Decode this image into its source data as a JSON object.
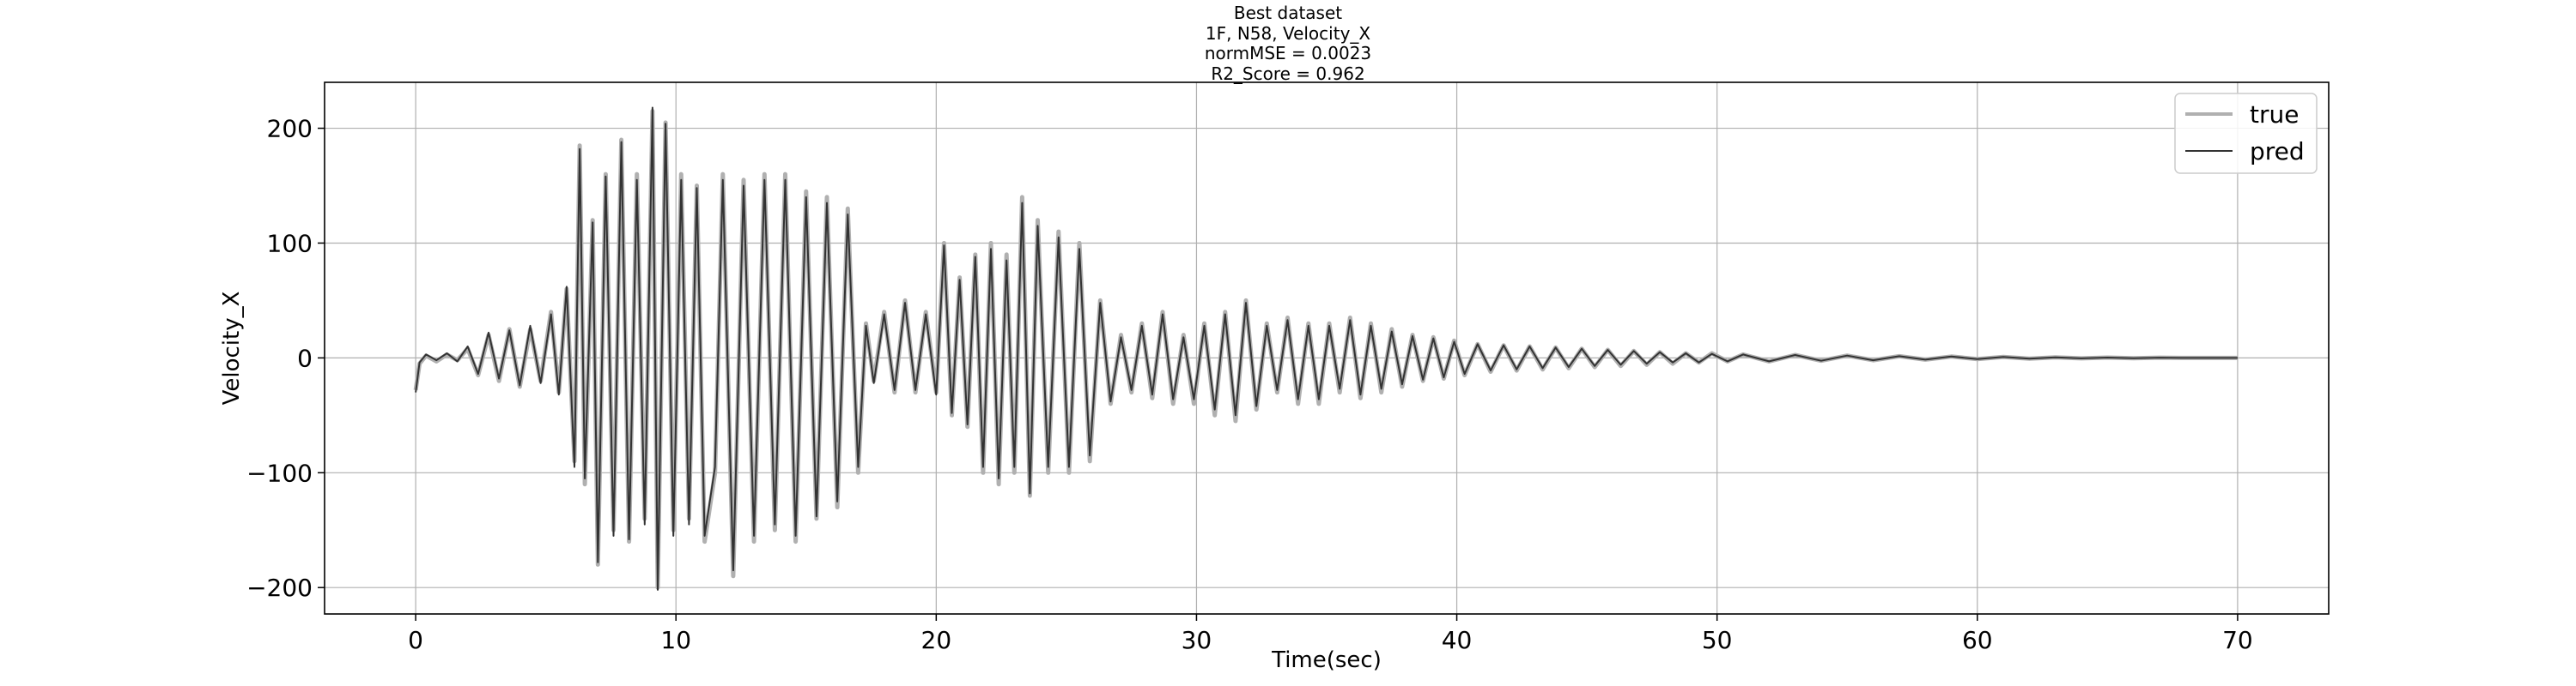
{
  "chart_data": {
    "type": "line",
    "title_lines": [
      "Best dataset",
      "1F, N58, Velocity_X",
      "normMSE = 0.0023",
      "R2_Score = 0.962"
    ],
    "xlabel": "Time(sec)",
    "ylabel": "Velocity_X",
    "xlim": [
      -3.5,
      73.5
    ],
    "ylim": [
      -223,
      240
    ],
    "xticks": [
      0,
      10,
      20,
      30,
      40,
      50,
      60,
      70
    ],
    "yticks": [
      -200,
      -100,
      0,
      100,
      200
    ],
    "ytick_labels": [
      "−200",
      "−100",
      "0",
      "100",
      "200"
    ],
    "grid": true,
    "legend_position": "top-right",
    "series": [
      {
        "name": "true",
        "color": "#b0b0b0",
        "points": [
          [
            0.0,
            -28
          ],
          [
            0.15,
            -5
          ],
          [
            0.4,
            2
          ],
          [
            0.8,
            -3
          ],
          [
            1.2,
            3
          ],
          [
            1.6,
            -2
          ],
          [
            2.0,
            8
          ],
          [
            2.4,
            -15
          ],
          [
            2.8,
            20
          ],
          [
            3.2,
            -20
          ],
          [
            3.6,
            25
          ],
          [
            4.0,
            -25
          ],
          [
            4.4,
            25
          ],
          [
            4.8,
            -20
          ],
          [
            5.2,
            40
          ],
          [
            5.5,
            -30
          ],
          [
            5.8,
            60
          ],
          [
            6.1,
            -90
          ],
          [
            6.3,
            185
          ],
          [
            6.5,
            -110
          ],
          [
            6.8,
            120
          ],
          [
            7.0,
            -180
          ],
          [
            7.3,
            160
          ],
          [
            7.6,
            -150
          ],
          [
            7.9,
            190
          ],
          [
            8.2,
            -160
          ],
          [
            8.5,
            160
          ],
          [
            8.8,
            -140
          ],
          [
            9.1,
            215
          ],
          [
            9.3,
            -200
          ],
          [
            9.6,
            205
          ],
          [
            9.9,
            -150
          ],
          [
            10.2,
            160
          ],
          [
            10.5,
            -140
          ],
          [
            10.8,
            150
          ],
          [
            11.1,
            -160
          ],
          [
            11.5,
            -100
          ],
          [
            11.8,
            160
          ],
          [
            12.2,
            -190
          ],
          [
            12.6,
            155
          ],
          [
            13.0,
            -160
          ],
          [
            13.4,
            160
          ],
          [
            13.8,
            -150
          ],
          [
            14.2,
            160
          ],
          [
            14.6,
            -160
          ],
          [
            15.0,
            145
          ],
          [
            15.4,
            -140
          ],
          [
            15.8,
            140
          ],
          [
            16.2,
            -130
          ],
          [
            16.6,
            130
          ],
          [
            17.0,
            -100
          ],
          [
            17.3,
            30
          ],
          [
            17.6,
            -20
          ],
          [
            18.0,
            40
          ],
          [
            18.4,
            -30
          ],
          [
            18.8,
            50
          ],
          [
            19.2,
            -30
          ],
          [
            19.6,
            40
          ],
          [
            20.0,
            -30
          ],
          [
            20.3,
            100
          ],
          [
            20.6,
            -50
          ],
          [
            20.9,
            70
          ],
          [
            21.2,
            -60
          ],
          [
            21.5,
            90
          ],
          [
            21.8,
            -100
          ],
          [
            22.1,
            100
          ],
          [
            22.4,
            -110
          ],
          [
            22.7,
            90
          ],
          [
            23.0,
            -100
          ],
          [
            23.3,
            140
          ],
          [
            23.6,
            -120
          ],
          [
            23.9,
            120
          ],
          [
            24.3,
            -100
          ],
          [
            24.7,
            110
          ],
          [
            25.1,
            -100
          ],
          [
            25.5,
            100
          ],
          [
            25.9,
            -90
          ],
          [
            26.3,
            50
          ],
          [
            26.7,
            -40
          ],
          [
            27.1,
            20
          ],
          [
            27.5,
            -30
          ],
          [
            27.9,
            30
          ],
          [
            28.3,
            -35
          ],
          [
            28.7,
            40
          ],
          [
            29.1,
            -40
          ],
          [
            29.5,
            20
          ],
          [
            29.9,
            -40
          ],
          [
            30.3,
            30
          ],
          [
            30.7,
            -50
          ],
          [
            31.1,
            40
          ],
          [
            31.5,
            -55
          ],
          [
            31.9,
            50
          ],
          [
            32.3,
            -45
          ],
          [
            32.7,
            30
          ],
          [
            33.1,
            -30
          ],
          [
            33.5,
            35
          ],
          [
            33.9,
            -40
          ],
          [
            34.3,
            30
          ],
          [
            34.7,
            -40
          ],
          [
            35.1,
            30
          ],
          [
            35.5,
            -30
          ],
          [
            35.9,
            35
          ],
          [
            36.3,
            -35
          ],
          [
            36.7,
            30
          ],
          [
            37.1,
            -30
          ],
          [
            37.5,
            25
          ],
          [
            37.9,
            -25
          ],
          [
            38.3,
            20
          ],
          [
            38.7,
            -20
          ],
          [
            39.1,
            18
          ],
          [
            39.5,
            -18
          ],
          [
            39.9,
            15
          ],
          [
            40.3,
            -15
          ],
          [
            40.8,
            12
          ],
          [
            41.3,
            -12
          ],
          [
            41.8,
            11
          ],
          [
            42.3,
            -11
          ],
          [
            42.8,
            10
          ],
          [
            43.3,
            -10
          ],
          [
            43.8,
            9
          ],
          [
            44.3,
            -9
          ],
          [
            44.8,
            8
          ],
          [
            45.3,
            -8
          ],
          [
            45.8,
            7
          ],
          [
            46.3,
            -7
          ],
          [
            46.8,
            6
          ],
          [
            47.3,
            -6
          ],
          [
            47.8,
            5
          ],
          [
            48.3,
            -5
          ],
          [
            48.8,
            4
          ],
          [
            49.3,
            -4
          ],
          [
            49.8,
            4
          ],
          [
            50.4,
            -3
          ],
          [
            51.0,
            3
          ],
          [
            52.0,
            -3
          ],
          [
            53.0,
            2.5
          ],
          [
            54.0,
            -2.5
          ],
          [
            55.0,
            2
          ],
          [
            56.0,
            -2
          ],
          [
            57.0,
            1.5
          ],
          [
            58.0,
            -1.5
          ],
          [
            59.0,
            1.2
          ],
          [
            60.0,
            -1
          ],
          [
            61.0,
            0.8
          ],
          [
            62.0,
            -0.6
          ],
          [
            63.0,
            0.5
          ],
          [
            64.0,
            -0.4
          ],
          [
            65.0,
            0.3
          ],
          [
            66.0,
            -0.2
          ],
          [
            67.0,
            0.2
          ],
          [
            68.0,
            0
          ],
          [
            69.0,
            0
          ],
          [
            70.0,
            0
          ]
        ]
      },
      {
        "name": "pred",
        "color": "#333333",
        "points": [
          [
            0.0,
            -30
          ],
          [
            0.15,
            -4
          ],
          [
            0.4,
            3
          ],
          [
            0.8,
            -2
          ],
          [
            1.2,
            4
          ],
          [
            1.6,
            -3
          ],
          [
            2.0,
            10
          ],
          [
            2.4,
            -14
          ],
          [
            2.8,
            22
          ],
          [
            3.2,
            -18
          ],
          [
            3.6,
            24
          ],
          [
            4.0,
            -24
          ],
          [
            4.4,
            28
          ],
          [
            4.8,
            -22
          ],
          [
            5.2,
            38
          ],
          [
            5.5,
            -32
          ],
          [
            5.8,
            62
          ],
          [
            6.1,
            -95
          ],
          [
            6.3,
            182
          ],
          [
            6.5,
            -105
          ],
          [
            6.8,
            118
          ],
          [
            7.0,
            -178
          ],
          [
            7.3,
            158
          ],
          [
            7.6,
            -155
          ],
          [
            7.9,
            188
          ],
          [
            8.2,
            -158
          ],
          [
            8.5,
            155
          ],
          [
            8.8,
            -145
          ],
          [
            9.1,
            218
          ],
          [
            9.3,
            -202
          ],
          [
            9.6,
            204
          ],
          [
            9.9,
            -155
          ],
          [
            10.2,
            155
          ],
          [
            10.5,
            -145
          ],
          [
            10.8,
            148
          ],
          [
            11.1,
            -155
          ],
          [
            11.5,
            -95
          ],
          [
            11.8,
            155
          ],
          [
            12.2,
            -185
          ],
          [
            12.6,
            150
          ],
          [
            13.0,
            -155
          ],
          [
            13.4,
            155
          ],
          [
            13.8,
            -145
          ],
          [
            14.2,
            155
          ],
          [
            14.6,
            -155
          ],
          [
            15.0,
            140
          ],
          [
            15.4,
            -138
          ],
          [
            15.8,
            135
          ],
          [
            16.2,
            -125
          ],
          [
            16.6,
            125
          ],
          [
            17.0,
            -95
          ],
          [
            17.3,
            28
          ],
          [
            17.6,
            -22
          ],
          [
            18.0,
            38
          ],
          [
            18.4,
            -28
          ],
          [
            18.8,
            48
          ],
          [
            19.2,
            -28
          ],
          [
            19.6,
            38
          ],
          [
            20.0,
            -32
          ],
          [
            20.3,
            98
          ],
          [
            20.6,
            -48
          ],
          [
            20.9,
            68
          ],
          [
            21.2,
            -58
          ],
          [
            21.5,
            88
          ],
          [
            21.8,
            -95
          ],
          [
            22.1,
            95
          ],
          [
            22.4,
            -105
          ],
          [
            22.7,
            85
          ],
          [
            23.0,
            -95
          ],
          [
            23.3,
            135
          ],
          [
            23.6,
            -118
          ],
          [
            23.9,
            115
          ],
          [
            24.3,
            -95
          ],
          [
            24.7,
            105
          ],
          [
            25.1,
            -95
          ],
          [
            25.5,
            95
          ],
          [
            25.9,
            -85
          ],
          [
            26.3,
            48
          ],
          [
            26.7,
            -38
          ],
          [
            27.1,
            18
          ],
          [
            27.5,
            -28
          ],
          [
            27.9,
            28
          ],
          [
            28.3,
            -32
          ],
          [
            28.7,
            38
          ],
          [
            29.1,
            -36
          ],
          [
            29.5,
            18
          ],
          [
            29.9,
            -36
          ],
          [
            30.3,
            28
          ],
          [
            30.7,
            -45
          ],
          [
            31.1,
            38
          ],
          [
            31.5,
            -50
          ],
          [
            31.9,
            48
          ],
          [
            32.3,
            -42
          ],
          [
            32.7,
            28
          ],
          [
            33.1,
            -28
          ],
          [
            33.5,
            33
          ],
          [
            33.9,
            -36
          ],
          [
            34.3,
            28
          ],
          [
            34.7,
            -36
          ],
          [
            35.1,
            28
          ],
          [
            35.5,
            -27
          ],
          [
            35.9,
            33
          ],
          [
            36.3,
            -32
          ],
          [
            36.7,
            28
          ],
          [
            37.1,
            -27
          ],
          [
            37.5,
            23
          ],
          [
            37.9,
            -23
          ],
          [
            38.3,
            19
          ],
          [
            38.7,
            -19
          ],
          [
            39.1,
            17
          ],
          [
            39.5,
            -17
          ],
          [
            39.9,
            14
          ],
          [
            40.3,
            -14
          ],
          [
            40.8,
            12
          ],
          [
            41.3,
            -11
          ],
          [
            41.8,
            11
          ],
          [
            42.3,
            -10
          ],
          [
            42.8,
            10
          ],
          [
            43.3,
            -9
          ],
          [
            43.8,
            9
          ],
          [
            44.3,
            -8
          ],
          [
            44.8,
            8
          ],
          [
            45.3,
            -7
          ],
          [
            45.8,
            7
          ],
          [
            46.3,
            -6
          ],
          [
            46.8,
            6
          ],
          [
            47.3,
            -5
          ],
          [
            47.8,
            5
          ],
          [
            48.3,
            -4
          ],
          [
            48.8,
            4
          ],
          [
            49.3,
            -4
          ],
          [
            49.8,
            3.5
          ],
          [
            50.4,
            -3
          ],
          [
            51.0,
            3
          ],
          [
            52.0,
            -3
          ],
          [
            53.0,
            2.5
          ],
          [
            54.0,
            -2.5
          ],
          [
            55.0,
            2
          ],
          [
            56.0,
            -2
          ],
          [
            57.0,
            1.5
          ],
          [
            58.0,
            -1.5
          ],
          [
            59.0,
            1.2
          ],
          [
            60.0,
            -1
          ],
          [
            61.0,
            0.8
          ],
          [
            62.0,
            -0.6
          ],
          [
            63.0,
            0.5
          ],
          [
            64.0,
            -0.4
          ],
          [
            65.0,
            0.3
          ],
          [
            66.0,
            -0.2
          ],
          [
            67.0,
            0.2
          ],
          [
            68.0,
            0
          ],
          [
            69.0,
            0
          ],
          [
            70.0,
            0
          ]
        ]
      }
    ]
  }
}
